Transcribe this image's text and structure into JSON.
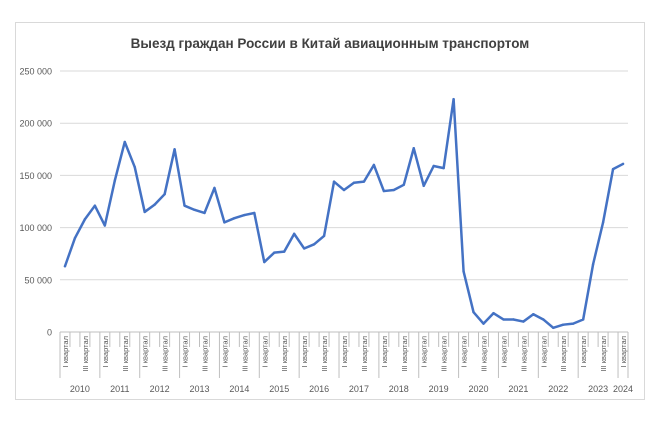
{
  "chart_data": {
    "type": "line",
    "title": "Выезд граждан России в Китай авиационным транспортом",
    "xlabel": "",
    "ylabel": "",
    "ylim": [
      0,
      250000
    ],
    "y_ticks": [
      "0",
      "50 000",
      "100 000",
      "150 000",
      "200 000",
      "250 000"
    ],
    "y_tick_values": [
      0,
      50000,
      100000,
      150000,
      200000,
      250000
    ],
    "grid": true,
    "legend": "none",
    "line_color": "#4472c4",
    "years": [
      {
        "label": "2010",
        "quarters": 4
      },
      {
        "label": "2011",
        "quarters": 4
      },
      {
        "label": "2012",
        "quarters": 4
      },
      {
        "label": "2013",
        "quarters": 4
      },
      {
        "label": "2014",
        "quarters": 4
      },
      {
        "label": "2015",
        "quarters": 4
      },
      {
        "label": "2016",
        "quarters": 4
      },
      {
        "label": "2017",
        "quarters": 4
      },
      {
        "label": "2018",
        "quarters": 4
      },
      {
        "label": "2019",
        "quarters": 4
      },
      {
        "label": "2020",
        "quarters": 4
      },
      {
        "label": "2021",
        "quarters": 4
      },
      {
        "label": "2022",
        "quarters": 4
      },
      {
        "label": "2023",
        "quarters": 4
      },
      {
        "label": "2024",
        "quarters": 1
      }
    ],
    "quarter_labels": [
      "I квартал",
      "",
      "III квартал",
      ""
    ],
    "series": [
      {
        "values": [
          63000,
          90000,
          108000,
          121000,
          102000,
          145000,
          182000,
          158000,
          115000,
          122000,
          132000,
          175000,
          121000,
          117000,
          114000,
          138000,
          105000,
          109000,
          112000,
          114000,
          67000,
          76000,
          77000,
          94000,
          80000,
          84000,
          92000,
          144000,
          136000,
          143000,
          144000,
          160000,
          135000,
          136000,
          141000,
          176000,
          140000,
          159000,
          157000,
          223000,
          58000,
          19000,
          8000,
          18000,
          12000,
          12000,
          10000,
          17000,
          12000,
          4000,
          7000,
          8000,
          12000,
          65000,
          105000,
          156000,
          161000
        ]
      }
    ]
  }
}
